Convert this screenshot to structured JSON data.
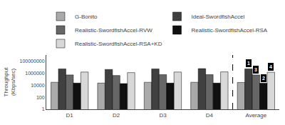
{
  "chart_data": {
    "type": "bar",
    "categories": [
      "D1",
      "D2",
      "D3",
      "D4",
      "Average"
    ],
    "series": [
      {
        "name": "G-Bonito",
        "color": "#aaaaaa",
        "values": [
          30000,
          22000,
          30000,
          30000,
          28000
        ]
      },
      {
        "name": "Ideal-SwordfishAccel",
        "color": "#404040",
        "values": [
          5000000,
          4000000,
          5000000,
          5500000,
          5000000
        ]
      },
      {
        "name": "Realistic-SwordfishAccel-RVW",
        "color": "#666666",
        "values": [
          500000,
          400000,
          550000,
          550000,
          500000
        ]
      },
      {
        "name": "Realistic-SwordfishAccel-RSA",
        "color": "#101010",
        "values": [
          22000,
          18000,
          22000,
          22000,
          21000
        ]
      },
      {
        "name": "Realistic-SwordfishAccel-RSA+KD",
        "color": "#d8d8d8",
        "values": [
          1500000,
          1200000,
          1500000,
          1600000,
          1400000
        ]
      }
    ],
    "ylabel": "Throughput\n(Kbps/sec)",
    "log": "y",
    "ylim": [
      1,
      1000000000
    ],
    "yticks": [
      1,
      100,
      10000,
      1000000,
      100000000
    ],
    "grid": false,
    "legend": "top",
    "annotations": [
      {
        "text": "1",
        "category": "Average",
        "series": "Ideal-SwordfishAccel"
      },
      {
        "text": "2",
        "category": "Average",
        "series": "Realistic-SwordfishAccel-RSA"
      },
      {
        "text": "3",
        "category": "Average",
        "series": "Realistic-SwordfishAccel-RVW"
      },
      {
        "text": "4",
        "category": "Average",
        "series": "Realistic-SwordfishAccel-RSA+KD"
      }
    ]
  }
}
